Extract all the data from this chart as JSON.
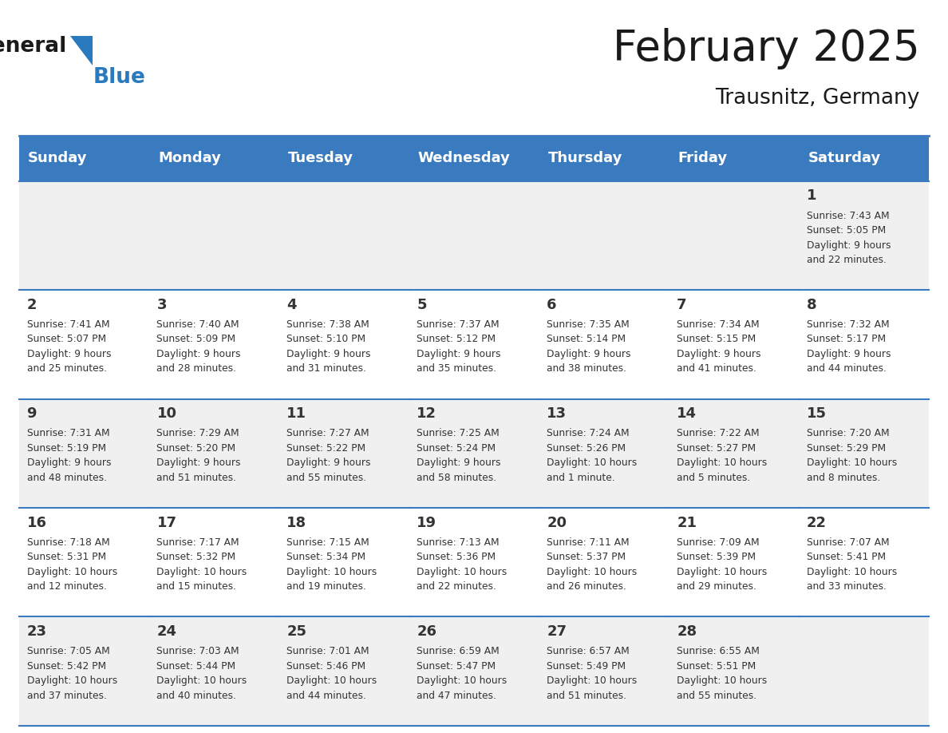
{
  "title": "February 2025",
  "subtitle": "Trausnitz, Germany",
  "header_color": "#3a7abf",
  "header_text_color": "#ffffff",
  "cell_bg_even": "#f0f0f0",
  "cell_bg_odd": "#ffffff",
  "border_color": "#3a7abf",
  "text_color": "#333333",
  "days_of_week": [
    "Sunday",
    "Monday",
    "Tuesday",
    "Wednesday",
    "Thursday",
    "Friday",
    "Saturday"
  ],
  "weeks": [
    [
      {
        "day": null,
        "info": null
      },
      {
        "day": null,
        "info": null
      },
      {
        "day": null,
        "info": null
      },
      {
        "day": null,
        "info": null
      },
      {
        "day": null,
        "info": null
      },
      {
        "day": null,
        "info": null
      },
      {
        "day": "1",
        "info": "Sunrise: 7:43 AM\nSunset: 5:05 PM\nDaylight: 9 hours\nand 22 minutes."
      }
    ],
    [
      {
        "day": "2",
        "info": "Sunrise: 7:41 AM\nSunset: 5:07 PM\nDaylight: 9 hours\nand 25 minutes."
      },
      {
        "day": "3",
        "info": "Sunrise: 7:40 AM\nSunset: 5:09 PM\nDaylight: 9 hours\nand 28 minutes."
      },
      {
        "day": "4",
        "info": "Sunrise: 7:38 AM\nSunset: 5:10 PM\nDaylight: 9 hours\nand 31 minutes."
      },
      {
        "day": "5",
        "info": "Sunrise: 7:37 AM\nSunset: 5:12 PM\nDaylight: 9 hours\nand 35 minutes."
      },
      {
        "day": "6",
        "info": "Sunrise: 7:35 AM\nSunset: 5:14 PM\nDaylight: 9 hours\nand 38 minutes."
      },
      {
        "day": "7",
        "info": "Sunrise: 7:34 AM\nSunset: 5:15 PM\nDaylight: 9 hours\nand 41 minutes."
      },
      {
        "day": "8",
        "info": "Sunrise: 7:32 AM\nSunset: 5:17 PM\nDaylight: 9 hours\nand 44 minutes."
      }
    ],
    [
      {
        "day": "9",
        "info": "Sunrise: 7:31 AM\nSunset: 5:19 PM\nDaylight: 9 hours\nand 48 minutes."
      },
      {
        "day": "10",
        "info": "Sunrise: 7:29 AM\nSunset: 5:20 PM\nDaylight: 9 hours\nand 51 minutes."
      },
      {
        "day": "11",
        "info": "Sunrise: 7:27 AM\nSunset: 5:22 PM\nDaylight: 9 hours\nand 55 minutes."
      },
      {
        "day": "12",
        "info": "Sunrise: 7:25 AM\nSunset: 5:24 PM\nDaylight: 9 hours\nand 58 minutes."
      },
      {
        "day": "13",
        "info": "Sunrise: 7:24 AM\nSunset: 5:26 PM\nDaylight: 10 hours\nand 1 minute."
      },
      {
        "day": "14",
        "info": "Sunrise: 7:22 AM\nSunset: 5:27 PM\nDaylight: 10 hours\nand 5 minutes."
      },
      {
        "day": "15",
        "info": "Sunrise: 7:20 AM\nSunset: 5:29 PM\nDaylight: 10 hours\nand 8 minutes."
      }
    ],
    [
      {
        "day": "16",
        "info": "Sunrise: 7:18 AM\nSunset: 5:31 PM\nDaylight: 10 hours\nand 12 minutes."
      },
      {
        "day": "17",
        "info": "Sunrise: 7:17 AM\nSunset: 5:32 PM\nDaylight: 10 hours\nand 15 minutes."
      },
      {
        "day": "18",
        "info": "Sunrise: 7:15 AM\nSunset: 5:34 PM\nDaylight: 10 hours\nand 19 minutes."
      },
      {
        "day": "19",
        "info": "Sunrise: 7:13 AM\nSunset: 5:36 PM\nDaylight: 10 hours\nand 22 minutes."
      },
      {
        "day": "20",
        "info": "Sunrise: 7:11 AM\nSunset: 5:37 PM\nDaylight: 10 hours\nand 26 minutes."
      },
      {
        "day": "21",
        "info": "Sunrise: 7:09 AM\nSunset: 5:39 PM\nDaylight: 10 hours\nand 29 minutes."
      },
      {
        "day": "22",
        "info": "Sunrise: 7:07 AM\nSunset: 5:41 PM\nDaylight: 10 hours\nand 33 minutes."
      }
    ],
    [
      {
        "day": "23",
        "info": "Sunrise: 7:05 AM\nSunset: 5:42 PM\nDaylight: 10 hours\nand 37 minutes."
      },
      {
        "day": "24",
        "info": "Sunrise: 7:03 AM\nSunset: 5:44 PM\nDaylight: 10 hours\nand 40 minutes."
      },
      {
        "day": "25",
        "info": "Sunrise: 7:01 AM\nSunset: 5:46 PM\nDaylight: 10 hours\nand 44 minutes."
      },
      {
        "day": "26",
        "info": "Sunrise: 6:59 AM\nSunset: 5:47 PM\nDaylight: 10 hours\nand 47 minutes."
      },
      {
        "day": "27",
        "info": "Sunrise: 6:57 AM\nSunset: 5:49 PM\nDaylight: 10 hours\nand 51 minutes."
      },
      {
        "day": "28",
        "info": "Sunrise: 6:55 AM\nSunset: 5:51 PM\nDaylight: 10 hours\nand 55 minutes."
      },
      {
        "day": null,
        "info": null
      }
    ]
  ],
  "logo_color_general": "#1a1a1a",
  "logo_color_blue": "#2a7abf",
  "logo_triangle_color": "#2a7abf"
}
